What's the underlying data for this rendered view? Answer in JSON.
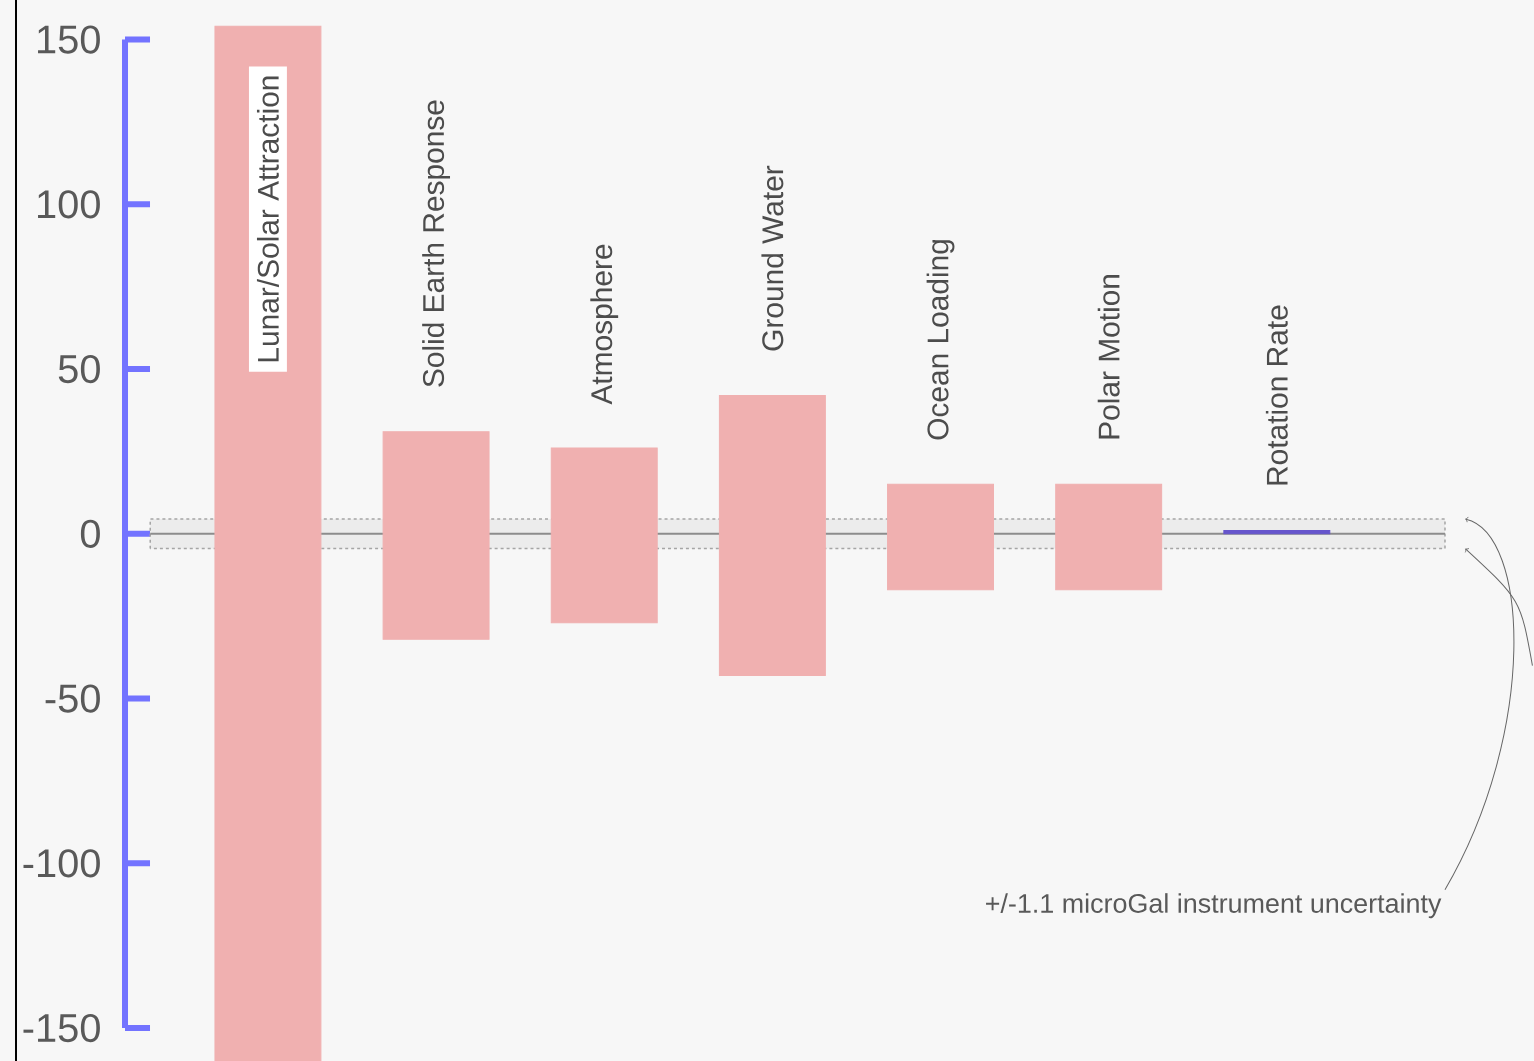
{
  "chart_data": {
    "type": "bar",
    "categories": [
      "Lunar/Solar Attraction",
      "Solid Earth Response",
      "Atmosphere",
      "Ground Water",
      "Ocean Loading",
      "Polar Motion",
      "Rotation Rate"
    ],
    "base": [
      -160,
      -32,
      -27,
      -43,
      -17,
      -17,
      0
    ],
    "values": [
      314,
      63,
      53,
      85,
      32,
      32,
      1
    ],
    "colors": [
      "#f0b0b0",
      "#f0b0b0",
      "#f0b0b0",
      "#f0b0b0",
      "#f0b0b0",
      "#f0b0b0",
      "#6655cc"
    ],
    "ylim": [
      -160,
      162
    ],
    "yticks": [
      -150,
      -100,
      -50,
      0,
      50,
      100,
      150
    ],
    "bands": [
      {
        "axis": "y",
        "from": -4.5,
        "to": 4.5,
        "color": "#ececec"
      }
    ],
    "annotations": [
      "+/-1.1 microGal instrument uncertainty"
    ]
  }
}
